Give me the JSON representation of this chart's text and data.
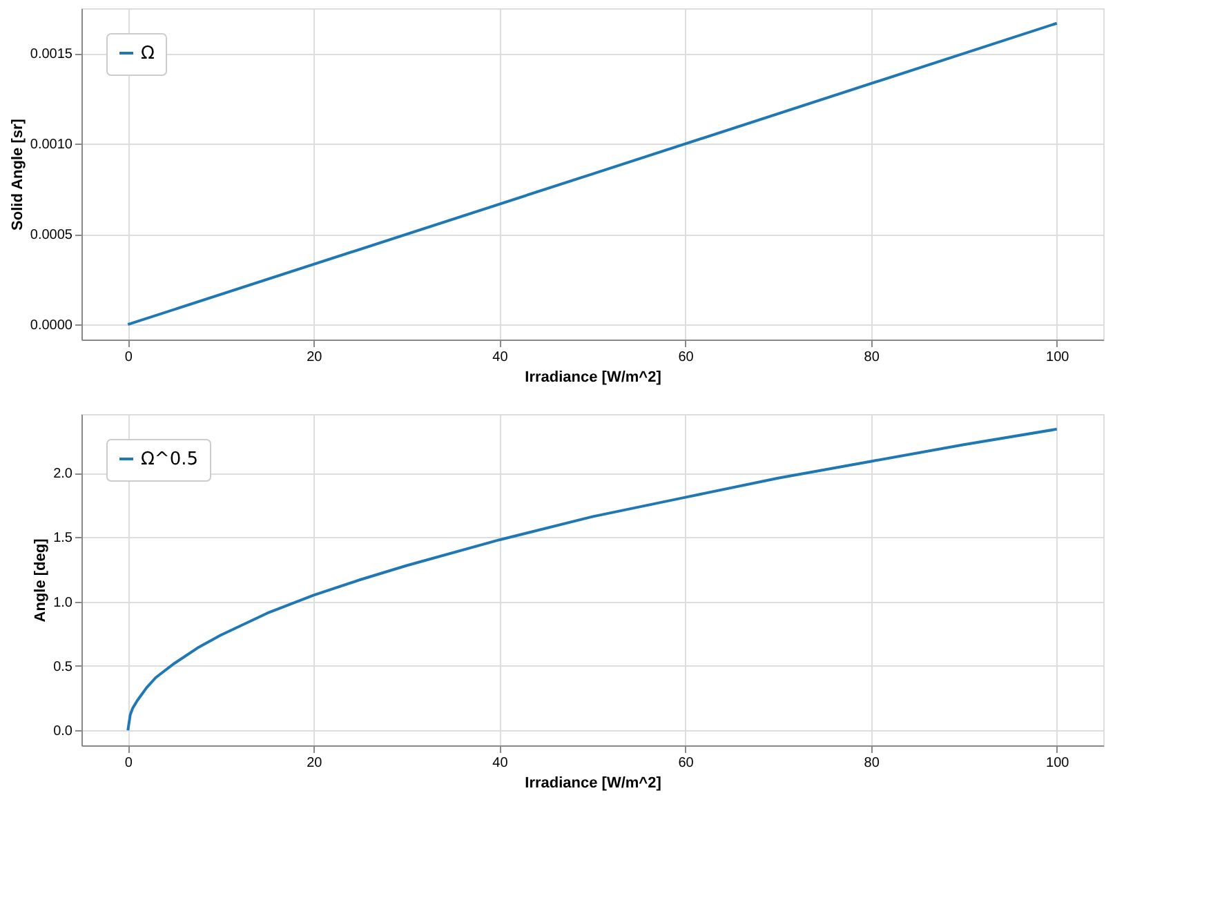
{
  "chart_data": [
    {
      "type": "line",
      "xlabel": "Irradiance [W/m^2]",
      "ylabel": "Solid Angle [sr]",
      "x": [
        0,
        50,
        100
      ],
      "series": [
        {
          "name": "Ω",
          "color": "#1f77b4",
          "values": [
            0,
            0.000833,
            0.001667
          ]
        }
      ],
      "xlim": [
        -5,
        105
      ],
      "xticks": [
        0,
        20,
        40,
        60,
        80,
        100
      ],
      "ylim": [
        -8.33e-05,
        0.00175
      ],
      "yticks": [
        {
          "value": 0,
          "label": "0.0000"
        },
        {
          "value": 0.0005,
          "label": "0.0005"
        },
        {
          "value": 0.001,
          "label": "0.0010"
        },
        {
          "value": 0.0015,
          "label": "0.0015"
        }
      ],
      "grid": true,
      "legend": "top left",
      "line_style": "solid",
      "marker": "none"
    },
    {
      "type": "line",
      "xlabel": "Irradiance [W/m^2]",
      "ylabel": "Angle [deg]",
      "x": [
        0,
        0.25,
        0.5,
        1,
        2,
        3,
        5,
        7.5,
        10,
        15,
        20,
        25,
        30,
        40,
        50,
        60,
        70,
        80,
        90,
        100
      ],
      "series": [
        {
          "name": "Ω^0.5",
          "color": "#1f77b4",
          "values": [
            0,
            0.12,
            0.17,
            0.23,
            0.33,
            0.41,
            0.52,
            0.64,
            0.74,
            0.91,
            1.05,
            1.17,
            1.28,
            1.48,
            1.66,
            1.81,
            1.96,
            2.09,
            2.22,
            2.34
          ]
        }
      ],
      "xlim": [
        -5,
        105
      ],
      "xticks": [
        0,
        20,
        40,
        60,
        80,
        100
      ],
      "ylim": [
        -0.117,
        2.457
      ],
      "yticks": [
        {
          "value": 0,
          "label": "0.0"
        },
        {
          "value": 0.5,
          "label": "0.5"
        },
        {
          "value": 1,
          "label": "1.0"
        },
        {
          "value": 1.5,
          "label": "1.5"
        },
        {
          "value": 2,
          "label": "2.0"
        }
      ],
      "grid": true,
      "legend": "top left",
      "line_style": "solid",
      "marker": "none"
    }
  ]
}
